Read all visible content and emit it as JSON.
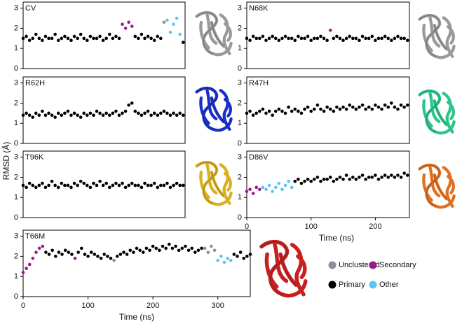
{
  "y_label": "RMSD (Å)",
  "legend": [
    {
      "name": "Unclustered",
      "color": "#8a8f99"
    },
    {
      "name": "Secondary",
      "color": "#9b1a83"
    },
    {
      "name": "Primary",
      "color": "#000000"
    },
    {
      "name": "Other",
      "color": "#5ec4f0"
    }
  ],
  "chart_data": [
    {
      "type": "scatter",
      "label": "CV",
      "xlim": [
        0,
        253
      ],
      "ylim": [
        0,
        3.3
      ],
      "yticks": [
        0,
        1,
        2,
        3
      ],
      "series": [
        {
          "name": "Primary",
          "color": "#000000",
          "x": [
            0,
            5,
            10,
            15,
            20,
            25,
            30,
            35,
            40,
            45,
            50,
            55,
            60,
            65,
            70,
            75,
            80,
            85,
            90,
            95,
            100,
            105,
            110,
            115,
            120,
            125,
            130,
            135,
            140,
            145,
            150,
            175,
            180,
            185,
            190,
            195,
            200,
            205,
            210,
            215,
            250
          ],
          "values": [
            1.5,
            1.6,
            1.4,
            1.5,
            1.7,
            1.5,
            1.4,
            1.6,
            1.5,
            1.5,
            1.7,
            1.4,
            1.5,
            1.6,
            1.5,
            1.4,
            1.6,
            1.5,
            1.7,
            1.5,
            1.4,
            1.6,
            1.5,
            1.5,
            1.6,
            1.4,
            1.5,
            1.7,
            1.5,
            1.6,
            1.5,
            1.6,
            1.5,
            1.7,
            1.5,
            1.6,
            1.5,
            1.4,
            1.6,
            1.5,
            1.3
          ]
        },
        {
          "name": "Secondary",
          "color": "#9b1a83",
          "x": [
            155,
            160,
            165,
            170
          ],
          "values": [
            2.2,
            2.0,
            2.3,
            2.1
          ]
        },
        {
          "name": "Unclustered",
          "color": "#8a8f99",
          "x": [
            220
          ],
          "values": [
            2.3
          ]
        },
        {
          "name": "Other",
          "color": "#5ec4f0",
          "x": [
            225,
            230,
            235,
            240,
            245
          ],
          "values": [
            2.4,
            1.8,
            2.2,
            2.5,
            1.7
          ]
        }
      ]
    },
    {
      "type": "scatter",
      "label": "N68K",
      "xlim": [
        0,
        253
      ],
      "ylim": [
        0,
        3.3
      ],
      "yticks": [
        0,
        1,
        2,
        3
      ],
      "series": [
        {
          "name": "Primary",
          "color": "#000000",
          "x": [
            0,
            5,
            10,
            15,
            20,
            25,
            30,
            35,
            40,
            45,
            50,
            55,
            60,
            65,
            70,
            75,
            80,
            85,
            90,
            95,
            100,
            105,
            110,
            115,
            120,
            125,
            135,
            140,
            145,
            150,
            155,
            160,
            165,
            170,
            175,
            180,
            185,
            190,
            195,
            200,
            205,
            210,
            215,
            220,
            225,
            230,
            235,
            240,
            245,
            250
          ],
          "values": [
            1.5,
            1.4,
            1.6,
            1.5,
            1.5,
            1.6,
            1.4,
            1.5,
            1.6,
            1.5,
            1.4,
            1.5,
            1.6,
            1.5,
            1.5,
            1.4,
            1.6,
            1.5,
            1.5,
            1.6,
            1.4,
            1.5,
            1.5,
            1.6,
            1.5,
            1.4,
            1.5,
            1.6,
            1.5,
            1.4,
            1.5,
            1.6,
            1.5,
            1.5,
            1.4,
            1.6,
            1.5,
            1.5,
            1.6,
            1.4,
            1.5,
            1.5,
            1.6,
            1.5,
            1.4,
            1.5,
            1.6,
            1.5,
            1.5,
            1.4
          ]
        },
        {
          "name": "Secondary",
          "color": "#9b1a83",
          "x": [
            130
          ],
          "values": [
            1.9
          ]
        }
      ]
    },
    {
      "type": "scatter",
      "label": "R62H",
      "xlim": [
        0,
        253
      ],
      "ylim": [
        0,
        3.3
      ],
      "yticks": [
        0,
        1,
        2,
        3
      ],
      "series": [
        {
          "name": "Primary",
          "color": "#000000",
          "x": [
            0,
            5,
            10,
            15,
            20,
            25,
            30,
            35,
            40,
            45,
            50,
            55,
            60,
            65,
            70,
            75,
            80,
            85,
            90,
            95,
            100,
            105,
            110,
            115,
            120,
            125,
            130,
            135,
            140,
            145,
            150,
            155,
            160,
            165,
            170,
            175,
            180,
            185,
            190,
            195,
            200,
            205,
            210,
            215,
            220,
            225,
            230,
            235,
            240,
            245,
            250
          ],
          "values": [
            1.4,
            1.5,
            1.4,
            1.3,
            1.5,
            1.4,
            1.6,
            1.4,
            1.5,
            1.4,
            1.3,
            1.5,
            1.4,
            1.5,
            1.6,
            1.4,
            1.5,
            1.4,
            1.3,
            1.5,
            1.4,
            1.5,
            1.4,
            1.6,
            1.5,
            1.4,
            1.5,
            1.4,
            1.5,
            1.6,
            1.4,
            1.5,
            1.6,
            1.9,
            2.0,
            1.6,
            1.5,
            1.4,
            1.5,
            1.6,
            1.4,
            1.5,
            1.4,
            1.5,
            1.6,
            1.5,
            1.4,
            1.5,
            1.4,
            1.5,
            1.4
          ]
        }
      ]
    },
    {
      "type": "scatter",
      "label": "R47H",
      "xlim": [
        0,
        253
      ],
      "ylim": [
        0,
        3.3
      ],
      "yticks": [
        0,
        1,
        2,
        3
      ],
      "series": [
        {
          "name": "Primary",
          "color": "#000000",
          "x": [
            0,
            5,
            10,
            15,
            20,
            25,
            30,
            35,
            40,
            45,
            50,
            55,
            60,
            65,
            70,
            75,
            80,
            85,
            90,
            95,
            100,
            105,
            110,
            115,
            120,
            125,
            130,
            135,
            140,
            145,
            150,
            155,
            160,
            165,
            170,
            175,
            180,
            185,
            190,
            195,
            200,
            205,
            210,
            215,
            220,
            225,
            230,
            235,
            240,
            245,
            250
          ],
          "values": [
            1.5,
            1.6,
            1.4,
            1.5,
            1.6,
            1.7,
            1.5,
            1.6,
            1.4,
            1.6,
            1.7,
            1.6,
            1.5,
            1.8,
            1.6,
            1.7,
            1.6,
            1.5,
            1.7,
            1.8,
            1.6,
            1.7,
            1.9,
            1.7,
            1.6,
            1.8,
            1.7,
            1.6,
            1.8,
            1.7,
            1.8,
            1.7,
            1.9,
            1.8,
            1.7,
            1.8,
            1.9,
            1.7,
            1.8,
            1.7,
            1.9,
            1.8,
            1.7,
            1.9,
            1.8,
            2.0,
            1.8,
            1.7,
            1.9,
            1.8,
            1.9
          ]
        }
      ]
    },
    {
      "type": "scatter",
      "label": "T96K",
      "xlim": [
        0,
        253
      ],
      "ylim": [
        0,
        3.3
      ],
      "yticks": [
        0,
        1,
        2,
        3
      ],
      "series": [
        {
          "name": "Primary",
          "color": "#000000",
          "x": [
            0,
            5,
            10,
            15,
            20,
            25,
            30,
            35,
            40,
            45,
            50,
            55,
            60,
            65,
            70,
            75,
            80,
            85,
            90,
            95,
            100,
            105,
            110,
            115,
            120,
            125,
            130,
            135,
            140,
            145,
            150,
            155,
            160,
            165,
            170,
            175,
            180,
            185,
            190,
            195,
            200,
            205,
            210,
            215,
            220,
            225,
            230,
            235,
            240,
            245,
            250
          ],
          "values": [
            1.6,
            1.5,
            1.7,
            1.6,
            1.5,
            1.6,
            1.7,
            1.5,
            1.6,
            1.8,
            1.6,
            1.5,
            1.7,
            1.6,
            1.6,
            1.5,
            1.7,
            1.6,
            1.8,
            1.7,
            1.6,
            1.5,
            1.7,
            1.6,
            1.8,
            1.6,
            1.7,
            1.5,
            1.6,
            1.7,
            1.6,
            1.7,
            1.5,
            1.6,
            1.7,
            1.6,
            1.6,
            1.5,
            1.7,
            1.6,
            1.6,
            1.7,
            1.5,
            1.6,
            1.6,
            1.7,
            1.5,
            1.6,
            1.7,
            1.6,
            1.6
          ]
        }
      ]
    },
    {
      "type": "scatter",
      "label": "D86V",
      "xlim": [
        0,
        253
      ],
      "ylim": [
        0,
        3.3
      ],
      "yticks": [
        0,
        1,
        2,
        3
      ],
      "xticks": [
        0,
        100,
        200
      ],
      "x_label": "Time (ns)",
      "series": [
        {
          "name": "Primary",
          "color": "#000000",
          "x": [
            75,
            80,
            85,
            90,
            95,
            100,
            105,
            110,
            115,
            120,
            125,
            130,
            135,
            140,
            145,
            150,
            155,
            160,
            165,
            170,
            175,
            180,
            185,
            190,
            195,
            200,
            205,
            210,
            215,
            220,
            225,
            230,
            235,
            240,
            245,
            250
          ],
          "values": [
            1.8,
            1.9,
            1.7,
            1.8,
            1.9,
            1.8,
            1.9,
            2.0,
            1.8,
            1.9,
            1.9,
            2.0,
            1.8,
            1.9,
            2.0,
            1.9,
            2.1,
            1.9,
            2.0,
            1.9,
            2.0,
            2.1,
            1.9,
            2.0,
            2.0,
            2.1,
            1.9,
            2.0,
            2.1,
            2.0,
            2.1,
            2.0,
            2.1,
            2.0,
            2.2,
            2.1
          ]
        },
        {
          "name": "Secondary",
          "color": "#9b1a83",
          "x": [
            0,
            5,
            10,
            15,
            20
          ],
          "values": [
            1.3,
            1.4,
            1.2,
            1.5,
            1.4
          ]
        },
        {
          "name": "Other",
          "color": "#5ec4f0",
          "x": [
            25,
            30,
            35,
            40,
            45,
            50,
            55,
            60,
            65,
            70
          ],
          "values": [
            1.5,
            1.4,
            1.6,
            1.3,
            1.5,
            1.7,
            1.4,
            1.6,
            1.8,
            1.5
          ]
        }
      ]
    },
    {
      "type": "scatter",
      "label": "T66M",
      "xlim": [
        0,
        350
      ],
      "ylim": [
        0,
        3.3
      ],
      "yticks": [
        0,
        1,
        2,
        3
      ],
      "xticks": [
        0,
        100,
        200,
        300
      ],
      "x_label": "Time (ns)",
      "series": [
        {
          "name": "Primary",
          "color": "#000000",
          "x": [
            35,
            40,
            45,
            50,
            55,
            60,
            65,
            70,
            75,
            85,
            90,
            95,
            100,
            105,
            110,
            115,
            120,
            125,
            130,
            135,
            145,
            150,
            155,
            160,
            165,
            170,
            175,
            180,
            185,
            190,
            195,
            200,
            205,
            210,
            215,
            220,
            225,
            230,
            235,
            240,
            245,
            250,
            255,
            260,
            265,
            270,
            275,
            325,
            330,
            335,
            340,
            345,
            350
          ],
          "values": [
            2.2,
            2.1,
            2.3,
            2.0,
            2.2,
            2.1,
            2.3,
            2.2,
            2.1,
            2.2,
            2.4,
            2.1,
            2.0,
            2.2,
            2.1,
            2.0,
            1.9,
            2.1,
            2.0,
            1.9,
            2.0,
            2.1,
            2.2,
            2.1,
            2.3,
            2.2,
            2.4,
            2.3,
            2.2,
            2.4,
            2.3,
            2.5,
            2.4,
            2.3,
            2.5,
            2.4,
            2.6,
            2.4,
            2.5,
            2.3,
            2.4,
            2.5,
            2.3,
            2.4,
            2.2,
            2.3,
            2.4,
            2.1,
            2.0,
            2.2,
            1.9,
            2.0,
            2.1
          ]
        },
        {
          "name": "Secondary",
          "color": "#9b1a83",
          "x": [
            0,
            5,
            10,
            15,
            20,
            25,
            30,
            80
          ],
          "values": [
            1.2,
            1.4,
            1.6,
            1.9,
            2.2,
            2.4,
            2.5,
            1.9
          ]
        },
        {
          "name": "Unclustered",
          "color": "#8a8f99",
          "x": [
            140,
            280,
            285,
            290,
            295
          ],
          "values": [
            1.8,
            2.4,
            2.2,
            2.5,
            2.3
          ]
        },
        {
          "name": "Other",
          "color": "#5ec4f0",
          "x": [
            300,
            305,
            310,
            315,
            320
          ],
          "values": [
            1.8,
            2.0,
            1.7,
            1.9,
            1.8
          ]
        }
      ]
    }
  ]
}
